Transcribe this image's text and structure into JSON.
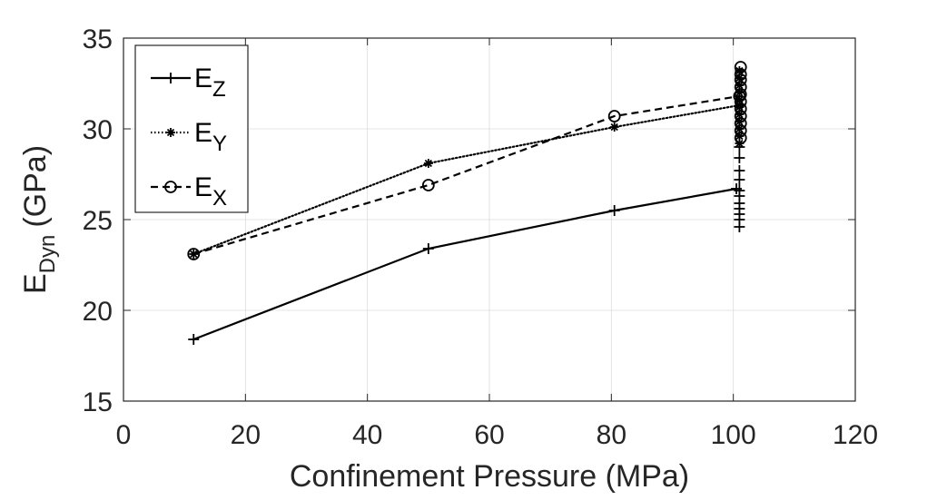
{
  "chart_data": {
    "type": "line",
    "xlabel": "Confinement Pressure (MPa)",
    "ylabel": {
      "main": "E",
      "sub": "Dyn",
      "unit": "(GPa)"
    },
    "xlim": [
      0,
      120
    ],
    "ylim": [
      15,
      35
    ],
    "xticks": [
      0,
      20,
      40,
      60,
      80,
      100,
      120
    ],
    "yticks": [
      15,
      20,
      25,
      30,
      35
    ],
    "grid": true,
    "legend_position": "top-left",
    "series": [
      {
        "name": "E",
        "name_sub": "Z",
        "marker": "plus",
        "line": "solid",
        "x": [
          11.5,
          50,
          80.5,
          100.5
        ],
        "y": [
          18.4,
          23.4,
          25.5,
          26.7
        ],
        "cluster": {
          "x": [
            101,
            101,
            101,
            101,
            101,
            101,
            101,
            101,
            101,
            101,
            101
          ],
          "y": [
            24.6,
            25.0,
            25.3,
            25.6,
            25.9,
            26.3,
            26.6,
            27.2,
            27.7,
            28.4,
            29.0
          ]
        }
      },
      {
        "name": "E",
        "name_sub": "Y",
        "marker": "asterisk",
        "line": "dotted",
        "x": [
          11.5,
          50,
          80.5,
          101
        ],
        "y": [
          23.1,
          28.1,
          30.1,
          31.3
        ],
        "cluster": {
          "x": [
            101,
            101,
            101,
            101,
            101,
            101,
            101,
            101,
            101,
            101,
            101
          ],
          "y": [
            29.2,
            29.6,
            30.0,
            30.4,
            30.8,
            31.2,
            31.6,
            32.0,
            32.4,
            32.8,
            33.2
          ]
        }
      },
      {
        "name": "E",
        "name_sub": "X",
        "marker": "circle",
        "line": "dashed",
        "x": [
          11.5,
          50,
          80.5,
          101
        ],
        "y": [
          23.1,
          26.9,
          30.7,
          31.8
        ],
        "cluster": {
          "x": [
            101.2,
            101.2,
            101.2,
            101.2,
            101.2,
            101.2,
            101.2,
            101.2,
            101.2,
            101.2,
            101.2
          ],
          "y": [
            29.5,
            29.9,
            30.3,
            30.7,
            31.1,
            31.5,
            31.9,
            32.3,
            32.7,
            33.0,
            33.4
          ]
        }
      }
    ]
  }
}
